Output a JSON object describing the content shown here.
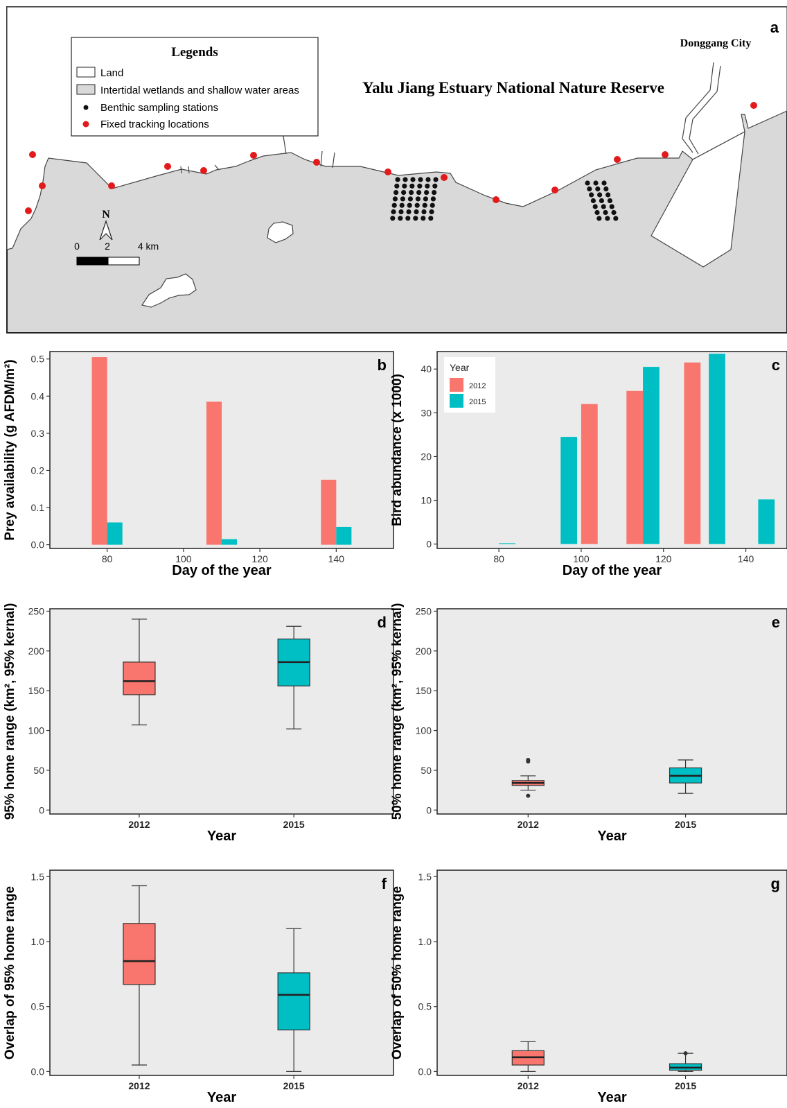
{
  "panel_a": {
    "letter": "a",
    "title": "Yalu Jiang Estuary National Nature Reserve",
    "city": "Donggang City",
    "legend": {
      "title": "Legends",
      "items": [
        {
          "label": "Land",
          "symbol": "land"
        },
        {
          "label": "Intertidal wetlands and shallow water areas",
          "symbol": "wetland"
        },
        {
          "label": "Benthic sampling stations",
          "symbol": "black-dot"
        },
        {
          "label": "Fixed tracking locations",
          "symbol": "red-dot"
        }
      ]
    },
    "north_label": "N",
    "scale_labels": [
      "0",
      "2",
      "4 km"
    ],
    "colors": {
      "land": "#ffffff",
      "wetland": "#d9d9d9",
      "tracking": "#e31a1c",
      "station": "#111111"
    }
  },
  "colors": {
    "2012": "#f8766d",
    "2015": "#00bfc4",
    "panel_bg": "#ebebeb"
  },
  "chart_data": [
    {
      "panel": "b",
      "type": "bar",
      "ylabel": "Prey availability (g AFDM/m²)",
      "xlabel": "Day of the year",
      "xlim": [
        65,
        155
      ],
      "ylim": [
        -0.01,
        0.52
      ],
      "xticks": [
        "80",
        "100",
        "120",
        "140"
      ],
      "yticks": [
        "0.0",
        "0.1",
        "0.2",
        "0.3",
        "0.4",
        "0.5"
      ],
      "series": [
        {
          "name": "2012",
          "bars": [
            {
              "x": 78,
              "y": 0.505
            },
            {
              "x": 108,
              "y": 0.385
            },
            {
              "x": 138,
              "y": 0.175
            }
          ]
        },
        {
          "name": "2015",
          "bars": [
            {
              "x": 82,
              "y": 0.06
            },
            {
              "x": 112,
              "y": 0.015
            },
            {
              "x": 142,
              "y": 0.048
            }
          ]
        }
      ]
    },
    {
      "panel": "c",
      "type": "bar",
      "ylabel": "Bird abundance (x 1000)",
      "xlabel": "Day of the year",
      "xlim": [
        65,
        150
      ],
      "ylim": [
        -1,
        44
      ],
      "xticks": [
        "80",
        "100",
        "120",
        "140"
      ],
      "yticks": [
        "0",
        "10",
        "20",
        "30",
        "40"
      ],
      "legend": {
        "title": "Year",
        "entries": [
          "2012",
          "2015"
        ]
      },
      "series": [
        {
          "name": "2012",
          "bars": [
            {
              "x": 102,
              "y": 32
            },
            {
              "x": 113,
              "y": 35
            },
            {
              "x": 127,
              "y": 41.5
            }
          ]
        },
        {
          "name": "2015",
          "bars": [
            {
              "x": 82,
              "y": 0.2
            },
            {
              "x": 97,
              "y": 24.5
            },
            {
              "x": 117,
              "y": 40.5
            },
            {
              "x": 133,
              "y": 43.5
            },
            {
              "x": 145,
              "y": 10.2
            }
          ]
        }
      ]
    },
    {
      "panel": "d",
      "type": "box",
      "ylabel": "95% home range (km², 95% kernal)",
      "xlabel": "Year",
      "ylim": [
        -5,
        253
      ],
      "yticks": [
        "0",
        "50",
        "100",
        "150",
        "200",
        "250"
      ],
      "categories": [
        "2012",
        "2015"
      ],
      "boxes": [
        {
          "name": "2012",
          "min": 107,
          "q1": 145,
          "median": 162,
          "q3": 186,
          "max": 240,
          "outliers": []
        },
        {
          "name": "2015",
          "min": 102,
          "q1": 156,
          "median": 186,
          "q3": 215,
          "max": 231,
          "outliers": []
        }
      ]
    },
    {
      "panel": "e",
      "type": "box",
      "ylabel": "50% home range (km², 95% kernal)",
      "xlabel": "Year",
      "ylim": [
        -5,
        253
      ],
      "yticks": [
        "0",
        "50",
        "100",
        "150",
        "200",
        "250"
      ],
      "categories": [
        "2012",
        "2015"
      ],
      "boxes": [
        {
          "name": "2012",
          "min": 25,
          "q1": 31,
          "median": 34,
          "q3": 37,
          "max": 43,
          "outliers": [
            18,
            61,
            63
          ]
        },
        {
          "name": "2015",
          "min": 21,
          "q1": 34,
          "median": 43,
          "q3": 53,
          "max": 63,
          "outliers": []
        }
      ]
    },
    {
      "panel": "f",
      "type": "box",
      "ylabel": "Overlap of 95% home range",
      "xlabel": "Year",
      "ylim": [
        -0.03,
        1.55
      ],
      "yticks": [
        "0.0",
        "0.5",
        "1.0",
        "1.5"
      ],
      "categories": [
        "2012",
        "2015"
      ],
      "boxes": [
        {
          "name": "2012",
          "min": 0.05,
          "q1": 0.67,
          "median": 0.85,
          "q3": 1.14,
          "max": 1.43,
          "outliers": []
        },
        {
          "name": "2015",
          "min": 0.0,
          "q1": 0.32,
          "median": 0.59,
          "q3": 0.76,
          "max": 1.1,
          "outliers": []
        }
      ]
    },
    {
      "panel": "g",
      "type": "box",
      "ylabel": "Overlap of 50% home range",
      "xlabel": "Year",
      "ylim": [
        -0.03,
        1.55
      ],
      "yticks": [
        "0.0",
        "0.5",
        "1.0",
        "1.5"
      ],
      "categories": [
        "2012",
        "2015"
      ],
      "boxes": [
        {
          "name": "2012",
          "min": 0.0,
          "q1": 0.05,
          "median": 0.11,
          "q3": 0.16,
          "max": 0.23,
          "outliers": []
        },
        {
          "name": "2015",
          "min": 0.0,
          "q1": 0.01,
          "median": 0.03,
          "q3": 0.06,
          "max": 0.14,
          "outliers": [
            0.14
          ]
        }
      ]
    }
  ]
}
